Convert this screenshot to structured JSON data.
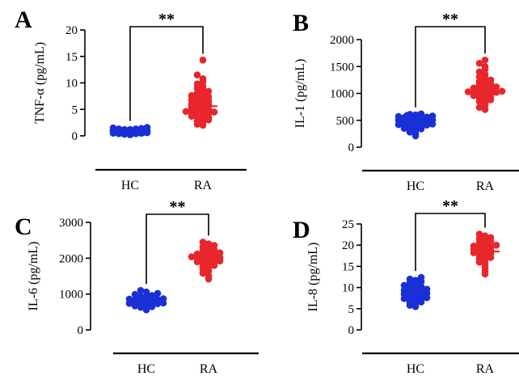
{
  "chart_data": [
    {
      "type": "scatter",
      "panel": "A",
      "ylabel": "TNF-α (pg/mL)",
      "ylim": [
        0,
        20
      ],
      "yticks": [
        0,
        5,
        10,
        15,
        20
      ],
      "categories": [
        "HC",
        "RA"
      ],
      "significance": "**",
      "series": [
        {
          "category": "HC",
          "color": "#1a2fd6",
          "mean": 0.8,
          "sem_low": 0.6,
          "sem_high": 1.0,
          "values": [
            0.2,
            0.3,
            0.4,
            0.4,
            0.5,
            0.5,
            0.6,
            0.6,
            0.6,
            0.7,
            0.7,
            0.7,
            0.7,
            0.8,
            0.8,
            0.8,
            0.8,
            0.8,
            0.9,
            0.9,
            0.9,
            0.9,
            1.0,
            1.0,
            1.0,
            1.0,
            1.1,
            1.1,
            1.1,
            1.2,
            1.2,
            1.3,
            1.3,
            1.4,
            1.5,
            1.6
          ]
        },
        {
          "category": "RA",
          "color": "#e8262b",
          "mean": 5.6,
          "sem_low": 5.0,
          "sem_high": 6.2,
          "values": [
            2.0,
            2.2,
            2.5,
            2.8,
            3.0,
            3.2,
            3.4,
            3.5,
            3.7,
            3.9,
            4.0,
            4.2,
            4.3,
            4.5,
            4.6,
            4.8,
            5.0,
            5.1,
            5.3,
            5.5,
            5.7,
            5.9,
            6.0,
            6.2,
            6.4,
            6.6,
            6.8,
            7.0,
            7.2,
            7.4,
            7.6,
            7.9,
            8.1,
            8.4,
            8.7,
            9.0,
            9.3,
            9.8,
            10.2,
            10.8,
            11.5,
            14.3
          ]
        }
      ]
    },
    {
      "type": "scatter",
      "panel": "B",
      "ylabel": "IL-1 (pg/mL)",
      "ylim": [
        0,
        2000
      ],
      "yticks": [
        0,
        500,
        1000,
        1500,
        2000
      ],
      "categories": [
        "HC",
        "RA"
      ],
      "significance": "**",
      "series": [
        {
          "category": "HC",
          "color": "#1a2fd6",
          "mean": 460,
          "sem_low": 420,
          "sem_high": 500,
          "values": [
            210,
            250,
            280,
            300,
            320,
            340,
            350,
            370,
            380,
            390,
            400,
            410,
            420,
            430,
            440,
            450,
            460,
            470,
            480,
            490,
            500,
            510,
            520,
            530,
            540,
            550,
            560,
            570,
            580,
            590,
            600,
            610,
            620
          ]
        },
        {
          "category": "RA",
          "color": "#e8262b",
          "mean": 1030,
          "sem_low": 980,
          "sem_high": 1090,
          "values": [
            700,
            740,
            780,
            820,
            850,
            880,
            900,
            920,
            940,
            960,
            980,
            990,
            1000,
            1010,
            1020,
            1030,
            1040,
            1050,
            1060,
            1080,
            1100,
            1120,
            1140,
            1160,
            1180,
            1200,
            1220,
            1250,
            1280,
            1310,
            1350,
            1400,
            1450,
            1500,
            1560,
            1620
          ]
        }
      ]
    },
    {
      "type": "scatter",
      "panel": "C",
      "ylabel": "IL-6 (pg/mL)",
      "ylim": [
        0,
        3000
      ],
      "yticks": [
        0,
        1000,
        2000,
        3000
      ],
      "categories": [
        "HC",
        "RA"
      ],
      "significance": "**",
      "series": [
        {
          "category": "HC",
          "color": "#1a2fd6",
          "mean": 800,
          "sem_low": 760,
          "sem_high": 840,
          "values": [
            560,
            600,
            630,
            650,
            670,
            690,
            700,
            710,
            720,
            730,
            740,
            750,
            760,
            770,
            780,
            790,
            800,
            810,
            820,
            830,
            840,
            850,
            860,
            870,
            880,
            900,
            920,
            940,
            960,
            990,
            1020,
            1060,
            1100
          ]
        },
        {
          "category": "RA",
          "color": "#e8262b",
          "mean": 1970,
          "sem_low": 1920,
          "sem_high": 2030,
          "values": [
            1420,
            1500,
            1580,
            1640,
            1680,
            1720,
            1760,
            1800,
            1830,
            1860,
            1880,
            1900,
            1920,
            1940,
            1960,
            1980,
            2000,
            2020,
            2040,
            2060,
            2080,
            2100,
            2120,
            2150,
            2180,
            2210,
            2240,
            2280,
            2320,
            2360,
            2400,
            2450
          ]
        }
      ]
    },
    {
      "type": "scatter",
      "panel": "D",
      "ylabel": "IL-8 (pg/mL)",
      "ylim": [
        0,
        25
      ],
      "yticks": [
        0,
        5,
        10,
        15,
        20,
        25
      ],
      "categories": [
        "HC",
        "RA"
      ],
      "significance": "**",
      "series": [
        {
          "category": "HC",
          "color": "#1a2fd6",
          "mean": 8.8,
          "sem_low": 8.2,
          "sem_high": 9.4,
          "values": [
            5.5,
            5.8,
            6.1,
            6.4,
            6.6,
            6.8,
            7.0,
            7.2,
            7.4,
            7.6,
            7.8,
            8.0,
            8.2,
            8.4,
            8.6,
            8.8,
            9.0,
            9.2,
            9.4,
            9.6,
            9.8,
            10.0,
            10.2,
            10.5,
            10.8,
            11.1,
            11.4,
            11.7,
            12.0,
            12.4
          ]
        },
        {
          "category": "RA",
          "color": "#e8262b",
          "mean": 18.5,
          "sem_low": 18.0,
          "sem_high": 19.1,
          "values": [
            13.2,
            14.0,
            14.8,
            15.5,
            16.0,
            16.4,
            16.8,
            17.1,
            17.4,
            17.7,
            18.0,
            18.2,
            18.4,
            18.6,
            18.8,
            19.0,
            19.2,
            19.4,
            19.6,
            19.8,
            20.0,
            20.3,
            20.6,
            20.9,
            21.2,
            21.5,
            21.8,
            22.2,
            22.6
          ]
        }
      ]
    }
  ]
}
